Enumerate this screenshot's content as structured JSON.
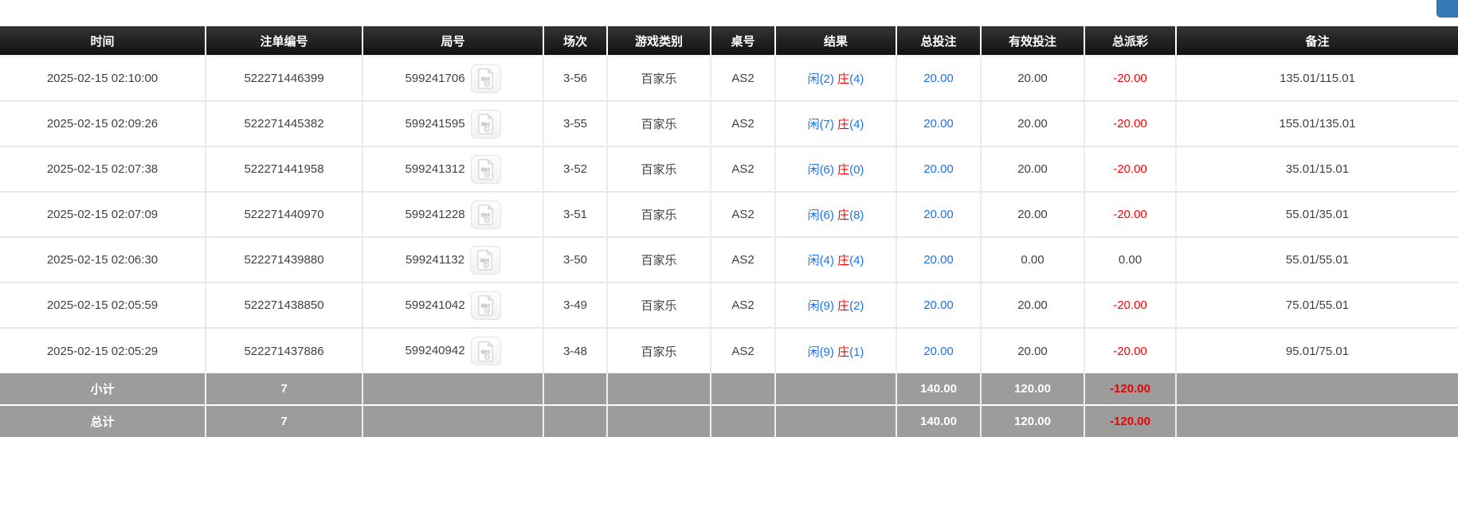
{
  "colors": {
    "accent_blue": "#1a73e8",
    "negative_red": "#ff0000",
    "summary_bg": "#9c9c9c",
    "button_blue": "#337ab7"
  },
  "table": {
    "columns": [
      {
        "key": "time",
        "label": "时间"
      },
      {
        "key": "bet_id",
        "label": "注单编号"
      },
      {
        "key": "round_id",
        "label": "局号"
      },
      {
        "key": "session",
        "label": "场次"
      },
      {
        "key": "game_type",
        "label": "游戏类别"
      },
      {
        "key": "table_no",
        "label": "桌号"
      },
      {
        "key": "result",
        "label": "结果"
      },
      {
        "key": "total_bet",
        "label": "总投注"
      },
      {
        "key": "valid_bet",
        "label": "有效投注"
      },
      {
        "key": "total_payout",
        "label": "总派彩"
      },
      {
        "key": "remark",
        "label": "备注"
      }
    ],
    "rows": [
      {
        "time": "2025-02-15 02:10:00",
        "bet_id": "522271446399",
        "round_id": "599241706",
        "session": "3-56",
        "game_type": "百家乐",
        "table_no": "AS2",
        "result": {
          "player": "闲",
          "player_num": "(2)",
          "banker": "庄",
          "banker_num": "(4)"
        },
        "total_bet": "20.00",
        "valid_bet": "20.00",
        "total_payout": "-20.00",
        "remark": "135.01/115.01"
      },
      {
        "time": "2025-02-15 02:09:26",
        "bet_id": "522271445382",
        "round_id": "599241595",
        "session": "3-55",
        "game_type": "百家乐",
        "table_no": "AS2",
        "result": {
          "player": "闲",
          "player_num": "(7)",
          "banker": "庄",
          "banker_num": "(4)"
        },
        "total_bet": "20.00",
        "valid_bet": "20.00",
        "total_payout": "-20.00",
        "remark": "155.01/135.01"
      },
      {
        "time": "2025-02-15 02:07:38",
        "bet_id": "522271441958",
        "round_id": "599241312",
        "session": "3-52",
        "game_type": "百家乐",
        "table_no": "AS2",
        "result": {
          "player": "闲",
          "player_num": "(6)",
          "banker": "庄",
          "banker_num": "(0)"
        },
        "total_bet": "20.00",
        "valid_bet": "20.00",
        "total_payout": "-20.00",
        "remark": "35.01/15.01"
      },
      {
        "time": "2025-02-15 02:07:09",
        "bet_id": "522271440970",
        "round_id": "599241228",
        "session": "3-51",
        "game_type": "百家乐",
        "table_no": "AS2",
        "result": {
          "player": "闲",
          "player_num": "(6)",
          "banker": "庄",
          "banker_num": "(8)"
        },
        "total_bet": "20.00",
        "valid_bet": "20.00",
        "total_payout": "-20.00",
        "remark": "55.01/35.01"
      },
      {
        "time": "2025-02-15 02:06:30",
        "bet_id": "522271439880",
        "round_id": "599241132",
        "session": "3-50",
        "game_type": "百家乐",
        "table_no": "AS2",
        "result": {
          "player": "闲",
          "player_num": "(4)",
          "banker": "庄",
          "banker_num": "(4)"
        },
        "total_bet": "20.00",
        "valid_bet": "0.00",
        "total_payout": "0.00",
        "remark": "55.01/55.01"
      },
      {
        "time": "2025-02-15 02:05:59",
        "bet_id": "522271438850",
        "round_id": "599241042",
        "session": "3-49",
        "game_type": "百家乐",
        "table_no": "AS2",
        "result": {
          "player": "闲",
          "player_num": "(9)",
          "banker": "庄",
          "banker_num": "(2)"
        },
        "total_bet": "20.00",
        "valid_bet": "20.00",
        "total_payout": "-20.00",
        "remark": "75.01/55.01"
      },
      {
        "time": "2025-02-15 02:05:29",
        "bet_id": "522271437886",
        "round_id": "599240942",
        "session": "3-48",
        "game_type": "百家乐",
        "table_no": "AS2",
        "result": {
          "player": "闲",
          "player_num": "(9)",
          "banker": "庄",
          "banker_num": "(1)"
        },
        "total_bet": "20.00",
        "valid_bet": "20.00",
        "total_payout": "-20.00",
        "remark": "95.01/75.01"
      }
    ],
    "subtotal": {
      "label": "小计",
      "count": "7",
      "total_bet": "140.00",
      "valid_bet": "120.00",
      "total_payout": "-120.00"
    },
    "grandtotal": {
      "label": "总计",
      "count": "7",
      "total_bet": "140.00",
      "valid_bet": "120.00",
      "total_payout": "-120.00"
    }
  }
}
